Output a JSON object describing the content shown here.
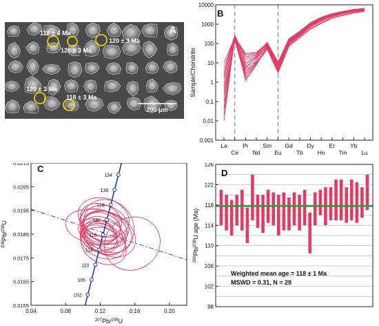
{
  "panel_a": {
    "letter": "A",
    "scale_bar": "200 μm",
    "spots": [
      {
        "label": "118 ± 4 Ma"
      },
      {
        "label": "120 ± 3 Ma"
      },
      {
        "label": "120 ± 3 Ma"
      },
      {
        "label": "120 ± 3 Ma"
      },
      {
        "label": "118 ± 3 Ma"
      }
    ]
  },
  "chart_data": [
    {
      "type": "line",
      "panel": "B",
      "ylabel": "Sample/Chondrite",
      "yscale": "log",
      "ylim": [
        0.001,
        10000
      ],
      "yticks": [
        "0.001",
        "0.01",
        "0.1",
        "1",
        "10",
        "100",
        "1000",
        "10000"
      ],
      "categories": [
        "La",
        "Ce",
        "Pr",
        "Nd",
        "Sm",
        "Eu",
        "Gd",
        "Tb",
        "Dy",
        "Ho",
        "Er",
        "Tm",
        "Yb",
        "Lu"
      ],
      "dashed_marker_categories": [
        "Ce",
        "Eu"
      ],
      "line_color": "#e03c64",
      "series": [
        {
          "values": [
            0.01,
            230,
            1.2,
            8,
            60,
            3.5,
            90,
            250,
            700,
            1400,
            2500,
            3500,
            4500,
            5500
          ]
        },
        {
          "values": [
            0.02,
            200,
            2,
            10,
            70,
            5,
            100,
            280,
            800,
            1600,
            2800,
            3800,
            5000,
            6000
          ]
        },
        {
          "values": [
            0.05,
            180,
            3,
            15,
            80,
            6,
            120,
            320,
            900,
            1800,
            3000,
            4000,
            5200,
            6200
          ]
        },
        {
          "values": [
            0.1,
            220,
            5,
            20,
            90,
            8,
            150,
            380,
            1000,
            2000,
            3200,
            4200,
            5500,
            6500
          ]
        },
        {
          "values": [
            0.5,
            250,
            10,
            25,
            100,
            9,
            160,
            400,
            1100,
            2100,
            3300,
            4300,
            5600,
            6400
          ]
        },
        {
          "values": [
            1.5,
            260,
            20,
            30,
            110,
            10,
            170,
            420,
            1150,
            2200,
            3400,
            4400,
            5700,
            6500
          ]
        },
        {
          "values": [
            5,
            240,
            25,
            35,
            105,
            9,
            140,
            350,
            950,
            1900,
            3100,
            4100,
            5300,
            6100
          ]
        },
        {
          "values": [
            10,
            210,
            30,
            35,
            95,
            7,
            130,
            330,
            900,
            1750,
            2900,
            3900,
            5000,
            5800
          ]
        },
        {
          "values": [
            0.3,
            160,
            4,
            12,
            55,
            4,
            80,
            220,
            600,
            1200,
            2200,
            3000,
            4000,
            4800
          ]
        },
        {
          "values": [
            0.04,
            150,
            1.5,
            9,
            50,
            3,
            70,
            200,
            550,
            1100,
            2000,
            2800,
            3700,
            4500
          ]
        },
        {
          "values": [
            2,
            230,
            8,
            22,
            85,
            6,
            125,
            300,
            850,
            1700,
            2700,
            3700,
            4800,
            5600
          ]
        },
        {
          "values": [
            0.8,
            190,
            6,
            18,
            75,
            5,
            110,
            290,
            820,
            1650,
            2650,
            3650,
            4700,
            5400
          ]
        },
        {
          "values": [
            0.2,
            170,
            2.5,
            11,
            65,
            4.5,
            95,
            260,
            720,
            1450,
            2450,
            3400,
            4400,
            5200
          ]
        },
        {
          "values": [
            3,
            270,
            15,
            28,
            115,
            11,
            175,
            430,
            1200,
            2300,
            3500,
            4600,
            5800,
            6600
          ]
        }
      ]
    },
    {
      "type": "scatter",
      "panel": "C",
      "letter": "C",
      "xlabel_pre": "207",
      "xlabel_mid": "Pb/",
      "xlabel_sup": "235",
      "xlabel_post": "U",
      "ylabel_pre": "206",
      "ylabel_mid": "Pb/",
      "ylabel_sup": "238",
      "ylabel_post": "U",
      "xlim": [
        0.04,
        0.22
      ],
      "ylim": [
        0.0155,
        0.0215
      ],
      "xticks": [
        "0.04",
        "0.08",
        "0.12",
        "0.16",
        "0.20"
      ],
      "yticks": [
        "0.0155",
        "0.0165",
        "0.0175",
        "0.0185",
        "0.0195",
        "0.0205",
        "0.0215"
      ],
      "concordia_age_labels": [
        "102",
        "106",
        "110",
        "114",
        "118",
        "122",
        "126",
        "130",
        "134"
      ],
      "concordia_age_values": [
        102,
        106,
        110,
        114,
        118,
        122,
        126,
        130,
        134
      ],
      "ellipse_color": "#e03c64",
      "concordia_color": "#1a3c9c",
      "ellipses": [
        {
          "cx": 0.122,
          "cy": 0.01855,
          "rx": 0.018,
          "ry": 0.0009,
          "angle": 68
        },
        {
          "cx": 0.125,
          "cy": 0.0187,
          "rx": 0.02,
          "ry": 0.001,
          "angle": 65
        },
        {
          "cx": 0.118,
          "cy": 0.0184,
          "rx": 0.016,
          "ry": 0.0008,
          "angle": 70
        },
        {
          "cx": 0.128,
          "cy": 0.0186,
          "rx": 0.022,
          "ry": 0.0011,
          "angle": 62
        },
        {
          "cx": 0.12,
          "cy": 0.0189,
          "rx": 0.017,
          "ry": 0.0009,
          "angle": 66
        },
        {
          "cx": 0.123,
          "cy": 0.0182,
          "rx": 0.019,
          "ry": 0.001,
          "angle": 67
        },
        {
          "cx": 0.116,
          "cy": 0.0186,
          "rx": 0.014,
          "ry": 0.0008,
          "angle": 72
        },
        {
          "cx": 0.13,
          "cy": 0.0185,
          "rx": 0.024,
          "ry": 0.0012,
          "angle": 60
        },
        {
          "cx": 0.121,
          "cy": 0.0191,
          "rx": 0.018,
          "ry": 0.0009,
          "angle": 68
        },
        {
          "cx": 0.124,
          "cy": 0.018,
          "rx": 0.02,
          "ry": 0.001,
          "angle": 64
        },
        {
          "cx": 0.119,
          "cy": 0.0183,
          "rx": 0.015,
          "ry": 0.0008,
          "angle": 70
        },
        {
          "cx": 0.127,
          "cy": 0.0189,
          "rx": 0.021,
          "ry": 0.001,
          "angle": 63
        },
        {
          "cx": 0.12,
          "cy": 0.0186,
          "rx": 0.013,
          "ry": 0.0007,
          "angle": 72
        },
        {
          "cx": 0.126,
          "cy": 0.01835,
          "rx": 0.019,
          "ry": 0.0009,
          "angle": 66
        },
        {
          "cx": 0.122,
          "cy": 0.0188,
          "rx": 0.016,
          "ry": 0.0008,
          "angle": 69
        },
        {
          "cx": 0.157,
          "cy": 0.0181,
          "rx": 0.033,
          "ry": 0.0011,
          "angle": 30
        },
        {
          "cx": 0.128,
          "cy": 0.0188,
          "rx": 0.03,
          "ry": 0.0012,
          "angle": 40
        },
        {
          "cx": 0.115,
          "cy": 0.0188,
          "rx": 0.02,
          "ry": 0.0013,
          "angle": 80
        },
        {
          "cx": 0.124,
          "cy": 0.0192,
          "rx": 0.022,
          "ry": 0.0011,
          "angle": 72
        }
      ]
    },
    {
      "type": "bar",
      "panel": "D",
      "letter": "D",
      "ylabel_pre": "206",
      "ylabel_mid": "Pb/",
      "ylabel_sup": "238",
      "ylabel_post": "U age (Ma)",
      "ylim": [
        98,
        126
      ],
      "yticks": [
        "98",
        "102",
        "106",
        "110",
        "114",
        "118",
        "122",
        "126"
      ],
      "mean": 117.8,
      "bar_color": "#e03c64",
      "mean_line_color": "#2a9a3a",
      "annotation_line1": "Weighted mean age = 118 ± 1 Ma",
      "annotation_line2": "MSWD = 0.31, N = 29",
      "bars": [
        {
          "low": 114,
          "high": 121
        },
        {
          "low": 113,
          "high": 120
        },
        {
          "low": 112,
          "high": 119
        },
        {
          "low": 114,
          "high": 120
        },
        {
          "low": 113,
          "high": 121
        },
        {
          "low": 110.5,
          "high": 117.5
        },
        {
          "low": 115,
          "high": 124
        },
        {
          "low": 113.5,
          "high": 120
        },
        {
          "low": 112.5,
          "high": 120
        },
        {
          "low": 114.5,
          "high": 121
        },
        {
          "low": 114,
          "high": 120.5
        },
        {
          "low": 112,
          "high": 120
        },
        {
          "low": 113,
          "high": 120.5
        },
        {
          "low": 113,
          "high": 119.5
        },
        {
          "low": 114,
          "high": 120.5
        },
        {
          "low": 113,
          "high": 120
        },
        {
          "low": 114,
          "high": 121
        },
        {
          "low": 108.5,
          "high": 116.5
        },
        {
          "low": 114,
          "high": 120.5
        },
        {
          "low": 116,
          "high": 121
        },
        {
          "low": 114,
          "high": 121.5
        },
        {
          "low": 115,
          "high": 121.5
        },
        {
          "low": 115,
          "high": 123
        },
        {
          "low": 115,
          "high": 123
        },
        {
          "low": 114.5,
          "high": 121.5
        },
        {
          "low": 115,
          "high": 123
        },
        {
          "low": 114.5,
          "high": 122.5
        },
        {
          "low": 115.5,
          "high": 121.5
        },
        {
          "low": 117,
          "high": 124
        }
      ]
    }
  ]
}
